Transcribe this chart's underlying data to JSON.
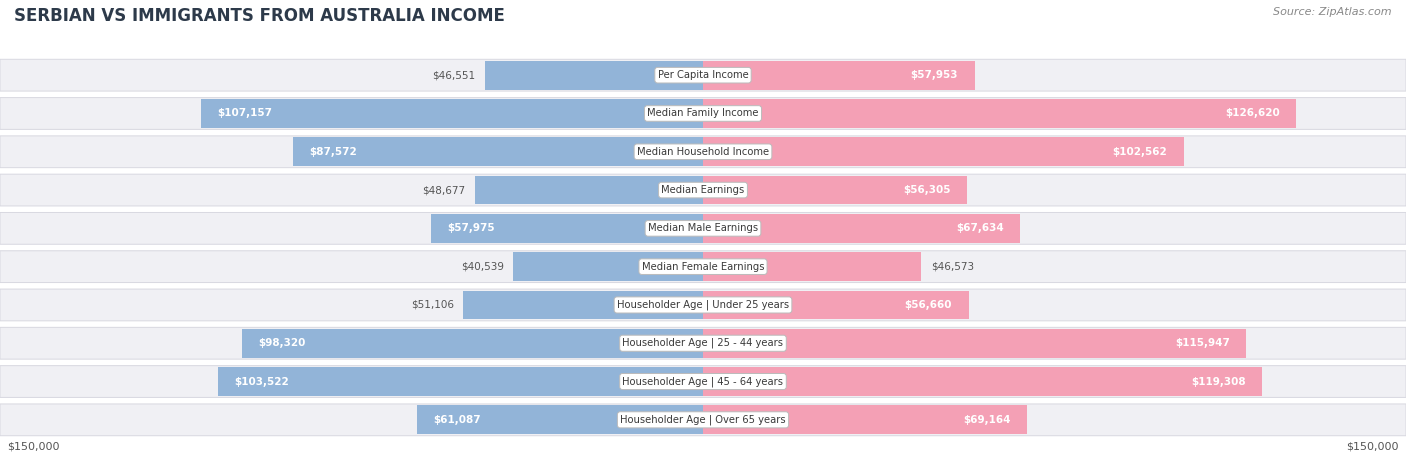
{
  "title": "SERBIAN VS IMMIGRANTS FROM AUSTRALIA INCOME",
  "source": "Source: ZipAtlas.com",
  "categories": [
    "Per Capita Income",
    "Median Family Income",
    "Median Household Income",
    "Median Earnings",
    "Median Male Earnings",
    "Median Female Earnings",
    "Householder Age | Under 25 years",
    "Householder Age | 25 - 44 years",
    "Householder Age | 45 - 64 years",
    "Householder Age | Over 65 years"
  ],
  "serbian_values": [
    46551,
    107157,
    87572,
    48677,
    57975,
    40539,
    51106,
    98320,
    103522,
    61087
  ],
  "australia_values": [
    57953,
    126620,
    102562,
    56305,
    67634,
    46573,
    56660,
    115947,
    119308,
    69164
  ],
  "serbian_color": "#92b4d8",
  "australia_color": "#f4a0b5",
  "row_bg_color": "#f0f0f4",
  "row_border_color": "#d8d8e0",
  "max_value": 150000,
  "serbian_label": "Serbian",
  "australia_label": "Immigrants from Australia",
  "title_color": "#2d3a4a",
  "source_color": "#888888",
  "threshold_inside": 55000
}
